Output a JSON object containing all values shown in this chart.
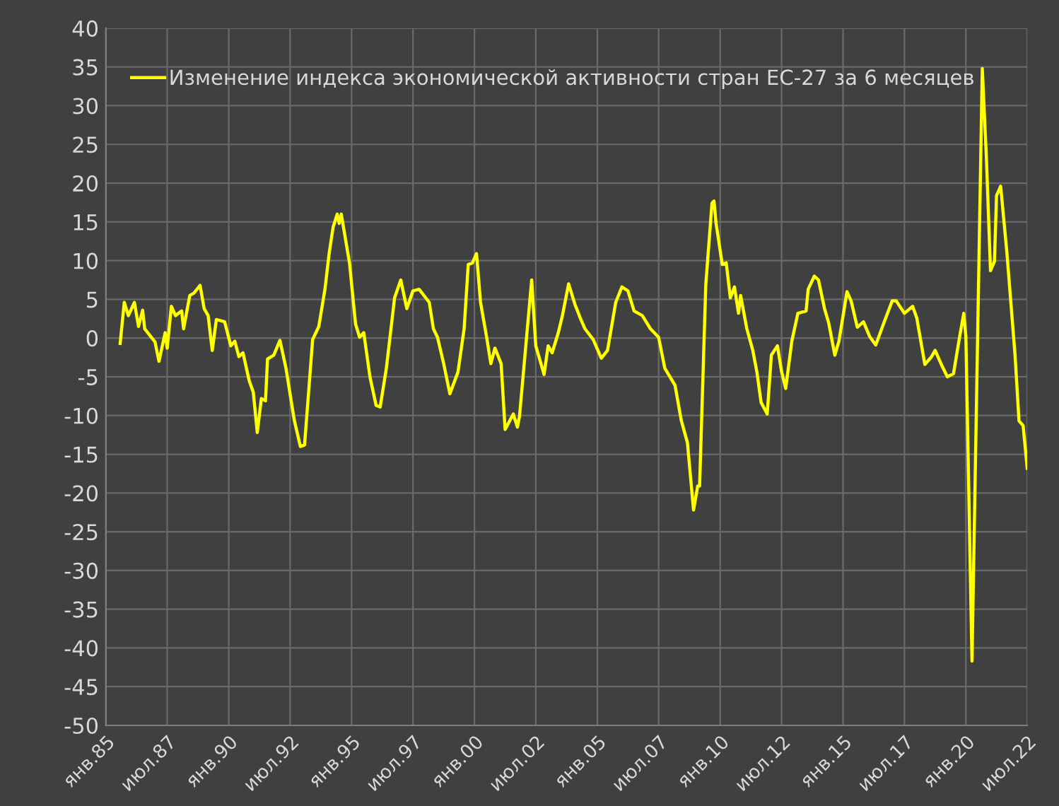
{
  "chart_data": {
    "type": "line",
    "x": [
      "1985-08",
      "1985-10",
      "1985-12",
      "1986-03",
      "1986-05",
      "1986-07",
      "1986-08",
      "1987-01",
      "1987-03",
      "1987-06",
      "1987-07",
      "1987-09",
      "1987-11",
      "1988-02",
      "1988-03",
      "1988-06",
      "1988-08",
      "1988-11",
      "1989-01",
      "1989-03",
      "1989-05",
      "1989-07",
      "1989-11",
      "1990-02",
      "1990-04",
      "1990-06",
      "1990-08",
      "1990-11",
      "1991-01",
      "1991-03",
      "1991-05",
      "1991-07",
      "1991-08",
      "1991-11",
      "1992-02",
      "1992-05",
      "1992-09",
      "1992-12",
      "1993-02",
      "1993-06",
      "1993-09",
      "1993-12",
      "1994-02",
      "1994-04",
      "1994-06",
      "1994-07",
      "1994-08",
      "1994-12",
      "1995-03",
      "1995-05",
      "1995-07",
      "1995-10",
      "1996-01",
      "1996-03",
      "1996-06",
      "1996-10",
      "1997-01",
      "1997-04",
      "1997-07",
      "1997-10",
      "1998-03",
      "1998-05",
      "1998-07",
      "1998-10",
      "1999-01",
      "1999-05",
      "1999-08",
      "1999-10",
      "1999-12",
      "2000-02",
      "2000-04",
      "2000-07",
      "2000-09",
      "2000-11",
      "2001-02",
      "2001-04",
      "2001-08",
      "2001-10",
      "2001-11",
      "2002-05",
      "2002-07",
      "2002-11",
      "2003-01",
      "2003-03",
      "2003-06",
      "2003-08",
      "2003-11",
      "2004-02",
      "2004-05",
      "2004-07",
      "2004-11",
      "2005-03",
      "2005-06",
      "2005-10",
      "2006-01",
      "2006-04",
      "2006-07",
      "2006-11",
      "2007-03",
      "2007-07",
      "2007-10",
      "2008-03",
      "2008-06",
      "2008-09",
      "2008-12",
      "2009-02",
      "2009-03",
      "2009-06",
      "2009-09",
      "2009-10",
      "2009-11",
      "2010-02",
      "2010-04",
      "2010-06",
      "2010-08",
      "2010-10",
      "2010-11",
      "2011-02",
      "2011-05",
      "2011-07",
      "2011-09",
      "2011-12",
      "2012-02",
      "2012-05",
      "2012-07",
      "2012-09",
      "2012-12",
      "2013-03",
      "2013-07",
      "2013-08",
      "2013-11",
      "2014-01",
      "2014-04",
      "2014-06",
      "2014-09",
      "2014-11",
      "2015-03",
      "2015-05",
      "2015-08",
      "2015-11",
      "2016-02",
      "2016-05",
      "2016-09",
      "2017-01",
      "2017-03",
      "2017-07",
      "2017-11",
      "2018-01",
      "2018-05",
      "2018-08",
      "2018-10",
      "2019-01",
      "2019-04",
      "2019-07",
      "2019-10",
      "2019-12",
      "2020-01",
      "2020-04",
      "2020-09",
      "2020-11",
      "2021-01",
      "2021-03",
      "2021-04",
      "2021-06",
      "2021-09",
      "2022-01",
      "2022-03",
      "2022-05",
      "2022-07"
    ],
    "series": [
      {
        "name": "Изменение индекса экономической активности стран ЕС-27 за 6 месяцев",
        "color": "#ffff00",
        "values": [
          -0.7,
          4.6,
          2.9,
          4.6,
          1.5,
          3.6,
          1.2,
          -0.5,
          -3,
          0.7,
          -1.3,
          4.1,
          2.9,
          3.5,
          1.2,
          5.5,
          5.8,
          6.8,
          3.8,
          2.9,
          -1.6,
          2.4,
          2.1,
          -1.0,
          -0.4,
          -2.4,
          -1.9,
          -5.5,
          -7,
          -12.2,
          -7.8,
          -8.1,
          -2.7,
          -2.2,
          -0.3,
          -3.9,
          -10.6,
          -14,
          -13.8,
          -0.2,
          1.5,
          6.3,
          10.9,
          14.3,
          16,
          14.8,
          16,
          9.7,
          1.8,
          0.1,
          0.7,
          -5,
          -8.7,
          -8.9,
          -3.9,
          5.2,
          7.5,
          3.8,
          6.1,
          6.3,
          4.6,
          1.2,
          0.1,
          -3.3,
          -7.2,
          -4.4,
          1.2,
          9.5,
          9.7,
          10.9,
          4.6,
          0.1,
          -3.3,
          -1.3,
          -3.3,
          -11.8,
          -9.8,
          -11.5,
          -10.1,
          7.5,
          -1.0,
          -4.7,
          -1.0,
          -1.9,
          0.7,
          2.9,
          7.0,
          4.4,
          2.4,
          1.2,
          -0.2,
          -2.6,
          -1.6,
          4.6,
          6.6,
          6.1,
          3.5,
          2.9,
          1.2,
          0.1,
          -3.9,
          -6.1,
          -10.6,
          -13.5,
          -22.2,
          -19.1,
          -19.1,
          6.9,
          17.4,
          17.7,
          14.8,
          9.5,
          9.7,
          5.2,
          6.6,
          3.2,
          5.5,
          1.2,
          -1.6,
          -4.4,
          -8.3,
          -9.8,
          -2.2,
          -1.0,
          -4.3,
          -6.5,
          -0.4,
          3.2,
          3.5,
          6.3,
          8.0,
          7.5,
          3.8,
          2.0,
          -2.2,
          -0.4,
          6.0,
          4.8,
          1.4,
          2.1,
          0.2,
          -0.9,
          2.0,
          4.8,
          4.8,
          3.2,
          4.1,
          2.6,
          -3.4,
          -2.5,
          -1.6,
          -3.4,
          -5.0,
          -4.6,
          0.2,
          3.2,
          0.2,
          -41.7,
          34.8,
          23.3,
          8.7,
          9.9,
          18.4,
          19.6,
          11.1,
          -2.2,
          -10.7,
          -11.3,
          -16.8
        ]
      }
    ],
    "xlim": [
      "1985-01",
      "2022-07"
    ],
    "xticks": [
      {
        "value": "1985-01",
        "label": "янв.85"
      },
      {
        "value": "1987-07",
        "label": "июл.87"
      },
      {
        "value": "1990-01",
        "label": "янв.90"
      },
      {
        "value": "1992-07",
        "label": "июл.92"
      },
      {
        "value": "1995-01",
        "label": "янв.95"
      },
      {
        "value": "1997-07",
        "label": "июл.97"
      },
      {
        "value": "2000-01",
        "label": "янв.00"
      },
      {
        "value": "2002-07",
        "label": "июл.02"
      },
      {
        "value": "2005-01",
        "label": "янв.05"
      },
      {
        "value": "2007-07",
        "label": "июл.07"
      },
      {
        "value": "2010-01",
        "label": "янв.10"
      },
      {
        "value": "2012-07",
        "label": "июл.12"
      },
      {
        "value": "2015-01",
        "label": "янв.15"
      },
      {
        "value": "2017-07",
        "label": "июл.17"
      },
      {
        "value": "2020-01",
        "label": "янв.20"
      },
      {
        "value": "2022-07",
        "label": "июл.22"
      }
    ],
    "ylim": [
      -50,
      40
    ],
    "yticks": [
      -50,
      -45,
      -40,
      -35,
      -30,
      -25,
      -20,
      -15,
      -10,
      -5,
      0,
      5,
      10,
      15,
      20,
      25,
      30,
      35,
      40
    ],
    "grid": true,
    "legend": "top left",
    "marker": "none",
    "line_style": "solid"
  }
}
